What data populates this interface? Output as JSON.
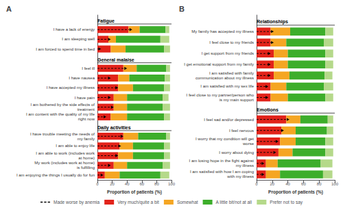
{
  "chart_data": [
    {
      "type": "bar",
      "orientation": "horizontal",
      "stacked": true,
      "grid": false,
      "legend": "bottom",
      "title": "A",
      "xlabel": "Proportion of patients (%)",
      "xlim": [
        0,
        100
      ],
      "xticks": [
        0,
        20,
        40,
        60,
        80,
        100
      ],
      "categories": [
        "I have a lack of energy",
        "I am sleeping well",
        "I am forced to spend time in bed",
        "I feel ill",
        "I have nausea",
        "I have accepted my illness",
        "I have pain",
        "I am bothered by the side effects of\ntreatment",
        "I am content with the quality of my life\nright now",
        "I have trouble meeting the needs of\nmy family",
        "I am able to enjoy life",
        "I am able to work (includes work\nat home)",
        "My work (includes work at home)\nis fulfilling",
        "I am enjoying the things I usually do for fun"
      ],
      "sections": [
        "Fatigue",
        "Fatigue",
        "Fatigue",
        "General malaise",
        "General malaise",
        "General malaise",
        "General malaise",
        "General malaise",
        "General malaise",
        "Daily activities",
        "Daily activities",
        "Daily activities",
        "Daily activities",
        "Daily activities"
      ],
      "series": [
        {
          "name": "Made worse by anemia",
          "type": "arrow",
          "line_style": "dashed",
          "color": "#000000",
          "values": [
            47,
            18,
            5,
            40,
            18,
            28,
            18,
            22,
            12,
            35,
            32,
            28,
            18,
            8
          ]
        },
        {
          "name": "Very much/quite a bit",
          "color": "#e2231a",
          "values": [
            42,
            15,
            18,
            35,
            28,
            28,
            22,
            22,
            18,
            35,
            30,
            28,
            22,
            10
          ]
        },
        {
          "name": "Somewhat",
          "color": "#f5a623",
          "values": [
            15,
            10,
            20,
            18,
            15,
            20,
            18,
            18,
            22,
            20,
            18,
            20,
            18,
            20
          ]
        },
        {
          "name": "A little bit/not at all",
          "color": "#3dae2b",
          "values": [
            35,
            60,
            52,
            40,
            48,
            42,
            48,
            48,
            50,
            38,
            42,
            42,
            48,
            55
          ]
        },
        {
          "name": "Prefer not to say",
          "color": "#b5d98a",
          "values": [
            5,
            12,
            8,
            5,
            7,
            8,
            8,
            10,
            8,
            5,
            8,
            8,
            10,
            12
          ]
        }
      ]
    },
    {
      "type": "bar",
      "orientation": "horizontal",
      "stacked": true,
      "grid": false,
      "legend": "bottom",
      "title": "B",
      "xlabel": "Proportion of patients (%)",
      "xlim": [
        0,
        100
      ],
      "xticks": [
        0,
        20,
        40,
        60,
        80,
        100
      ],
      "categories": [
        "My family has accepted my illness",
        "I feel close to my friends",
        "I get support from my friends",
        "I get emotional support from my family",
        "I am satisfied with family\ncommunication about my illness",
        "I am satisfied with my sex life",
        "I feel close to my partner/person who\nis my main support",
        "I feel sad and/or depressed",
        "I feel nervous",
        "I worry that my condition will get\nworse",
        "I worry about dying",
        "I am losing hope in the fight against\nmy illness",
        "I am satisfied with how I am coping\nwith my illness"
      ],
      "sections": [
        "Relationships",
        "Relationships",
        "Relationships",
        "Relationships",
        "Relationships",
        "Relationships",
        "Relationships",
        "Emotions",
        "Emotions",
        "Emotions",
        "Emotions",
        "Emotions",
        "Emotions"
      ],
      "series": [
        {
          "name": "Made worse by anemia",
          "type": "arrow",
          "line_style": "dashed",
          "color": "#000000",
          "values": [
            22,
            22,
            18,
            18,
            18,
            15,
            15,
            42,
            35,
            28,
            25,
            10,
            10
          ]
        },
        {
          "name": "Very much/quite a bit",
          "color": "#e2231a",
          "values": [
            18,
            18,
            22,
            22,
            22,
            18,
            18,
            38,
            32,
            30,
            28,
            12,
            12
          ]
        },
        {
          "name": "Somewhat",
          "color": "#f5a623",
          "values": [
            25,
            20,
            18,
            18,
            20,
            20,
            22,
            18,
            18,
            20,
            18,
            15,
            18
          ]
        },
        {
          "name": "A little bit/not at all",
          "color": "#3dae2b",
          "values": [
            45,
            48,
            48,
            48,
            45,
            48,
            48,
            35,
            40,
            38,
            42,
            55,
            55
          ]
        },
        {
          "name": "Prefer not to say",
          "color": "#b5d98a",
          "values": [
            10,
            12,
            10,
            10,
            10,
            12,
            10,
            7,
            8,
            10,
            10,
            15,
            12
          ]
        }
      ]
    }
  ]
}
